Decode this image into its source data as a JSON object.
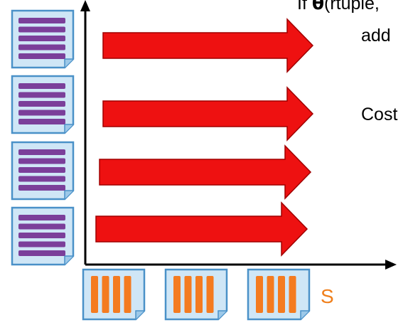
{
  "text": {
    "condition_prefix": "If ",
    "theta": "θ",
    "condition_rest": "(rtuple,",
    "action": "add",
    "cost": "Cost",
    "s_label": "S"
  },
  "diagram": {
    "r_pages": 4,
    "s_pages": 3,
    "arrows": 4,
    "colors": {
      "page_fill": "#cfe6f6",
      "page_stroke": "#4a91c8",
      "r_stripe": "#7b3f9a",
      "s_stripe": "#f47b20",
      "arrow_fill": "#ee1111",
      "arrow_stroke": "#a00000",
      "axis": "#000000",
      "s_label": "#f07f1b"
    }
  }
}
